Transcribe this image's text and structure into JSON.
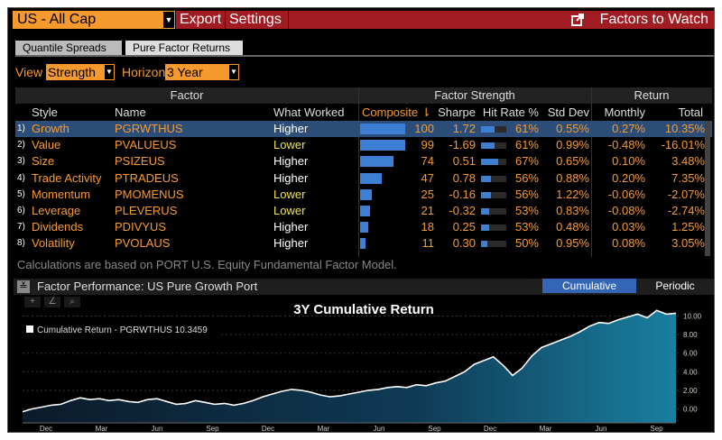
{
  "topbar": {
    "universe": "US - All Cap",
    "export_label": "Export",
    "settings_label": "Settings",
    "factors_to_watch_label": "Factors to Watch"
  },
  "tabs": [
    {
      "label": "Quantile Spreads",
      "active": false
    },
    {
      "label": "Pure Factor Returns",
      "active": true
    }
  ],
  "view": {
    "view_label": "View",
    "view_value": "Strength",
    "horizon_label": "Horizon",
    "horizon_value": "3 Year"
  },
  "table": {
    "group_headers": {
      "factor": "Factor",
      "strength": "Factor Strength",
      "return": "Return"
    },
    "columns": {
      "style": "Style",
      "name": "Name",
      "what_worked": "What Worked",
      "composite": "Composite ⇂",
      "sharpe": "Sharpe",
      "hit_rate": "Hit Rate %",
      "std_dev": "Std Dev",
      "monthly": "Monthly",
      "total": "Total"
    },
    "rows": [
      {
        "idx": "1)",
        "style": "Growth",
        "name": "PGRWTHUS",
        "what": "Higher",
        "composite": 100,
        "composite_label": "100",
        "sharpe": "1.72",
        "hit_rate": "61%",
        "hit_value": 61,
        "std": "0.55%",
        "monthly": "0.27%",
        "total": "10.35%"
      },
      {
        "idx": "2)",
        "style": "Value",
        "name": "PVALUEUS",
        "what": "Lower",
        "composite": 99,
        "composite_label": "99",
        "sharpe": "-1.69",
        "hit_rate": "61%",
        "hit_value": 61,
        "std": "0.99%",
        "monthly": "-0.48%",
        "total": "-16.01%"
      },
      {
        "idx": "3)",
        "style": "Size",
        "name": "PSIZEUS",
        "what": "Higher",
        "composite": 74,
        "composite_label": "74",
        "sharpe": "0.51",
        "hit_rate": "67%",
        "hit_value": 67,
        "std": "0.65%",
        "monthly": "0.10%",
        "total": "3.48%"
      },
      {
        "idx": "4)",
        "style": "Trade Activity",
        "name": "PTRADEUS",
        "what": "Higher",
        "composite": 47,
        "composite_label": "47",
        "sharpe": "0.78",
        "hit_rate": "56%",
        "hit_value": 56,
        "std": "0.88%",
        "monthly": "0.20%",
        "total": "7.35%"
      },
      {
        "idx": "5)",
        "style": "Momentum",
        "name": "PMOMENUS",
        "what": "Lower",
        "composite": 25,
        "composite_label": "25",
        "sharpe": "-0.16",
        "hit_rate": "56%",
        "hit_value": 56,
        "std": "1.22%",
        "monthly": "-0.06%",
        "total": "-2.07%"
      },
      {
        "idx": "6)",
        "style": "Leverage",
        "name": "PLEVERUS",
        "what": "Lower",
        "composite": 21,
        "composite_label": "21",
        "sharpe": "-0.32",
        "hit_rate": "53%",
        "hit_value": 53,
        "std": "0.83%",
        "monthly": "-0.08%",
        "total": "-2.74%"
      },
      {
        "idx": "7)",
        "style": "Dividends",
        "name": "PDIVYUS",
        "what": "Higher",
        "composite": 18,
        "composite_label": "18",
        "sharpe": "0.25",
        "hit_rate": "53%",
        "hit_value": 53,
        "std": "0.48%",
        "monthly": "0.03%",
        "total": "1.25%"
      },
      {
        "idx": "8)",
        "style": "Volatility",
        "name": "PVOLAUS",
        "what": "Higher",
        "composite": 11,
        "composite_label": "11",
        "sharpe": "0.30",
        "hit_rate": "50%",
        "hit_value": 50,
        "std": "0.95%",
        "monthly": "0.08%",
        "total": "3.05%"
      }
    ]
  },
  "note": "Calculations are based on PORT U.S. Equity Fundamental Factor Model.",
  "chart_panel": {
    "title": "Factor Performance: US Pure Growth Port",
    "cumulative_label": "Cumulative",
    "periodic_label": "Periodic"
  },
  "colors": {
    "accent_orange": "#f79a2e",
    "bar_blue": "#3d7fd3",
    "red_bar": "#a11b22",
    "selected_row": "#2b4d78"
  },
  "chart_data": {
    "type": "area",
    "title": "3Y Cumulative Return",
    "legend": "Cumulative Return - PGRWTHUS 10.3459",
    "legend_placement": "top-left",
    "x_tick_labels": [
      "Dec",
      "Mar",
      "Jun",
      "Sep",
      "Dec",
      "Mar",
      "Jun",
      "Sep",
      "Dec",
      "Mar",
      "Jun",
      "Sep"
    ],
    "y_ticks": [
      0,
      2,
      4,
      6,
      8,
      10
    ],
    "y_tick_labels": [
      "0.00",
      "2.00",
      "4.00",
      "6.00",
      "8.00",
      "10.00"
    ],
    "ylim": [
      -1.5,
      11.5
    ],
    "last_value": 10.3459,
    "series": [
      {
        "values": [
          -0.3,
          0.0,
          0.2,
          0.4,
          0.5,
          0.9,
          1.2,
          1.0,
          1.1,
          0.9,
          1.0,
          0.8,
          0.7,
          1.0,
          1.1,
          0.8,
          0.5,
          0.6,
          0.9,
          0.7,
          0.5,
          0.6,
          0.4,
          0.6,
          0.9,
          1.3,
          1.6,
          1.9,
          2.1,
          2.0,
          1.8,
          1.5,
          1.3,
          1.4,
          1.6,
          1.8,
          2.0,
          2.1,
          2.3,
          2.4,
          2.3,
          2.6,
          2.5,
          2.8,
          3.0,
          3.5,
          4.0,
          4.8,
          5.2,
          5.6,
          4.7,
          3.6,
          4.4,
          5.7,
          6.6,
          7.0,
          7.4,
          7.8,
          8.3,
          8.9,
          9.3,
          9.2,
          9.6,
          9.9,
          10.2,
          9.8,
          10.6,
          10.2,
          10.3
        ]
      }
    ]
  }
}
